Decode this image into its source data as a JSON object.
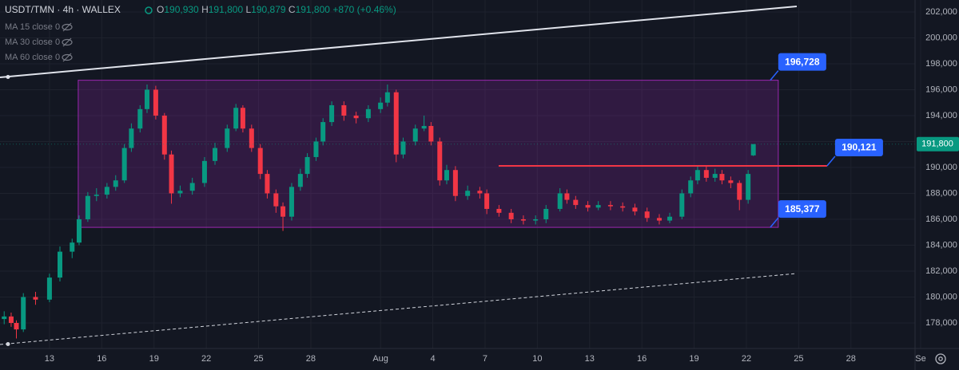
{
  "chart_data": {
    "type": "candlestick",
    "symbol": "USDT/TMN · 4h · WALLEX",
    "ohlc": [
      {
        "key": "O",
        "value": 190930,
        "label": "190,930"
      },
      {
        "key": "H",
        "value": 191800,
        "label": "191,800"
      },
      {
        "key": "L",
        "value": 190879,
        "label": "190,879"
      },
      {
        "key": "C",
        "value": 191800,
        "label": "191,800"
      }
    ],
    "change": {
      "value": 870,
      "label": "+870 (+0.46%)"
    },
    "indicators": [
      "MA 15 close 0",
      "MA 30 close 0",
      "MA 60 close 0"
    ],
    "up_color": "#089981",
    "down_color": "#f23645",
    "x": [
      -2.6,
      -2.2,
      -1.9,
      -1.5,
      -0.8,
      0.0,
      0.6,
      1.3,
      1.7,
      2.2,
      2.7,
      3.3,
      3.8,
      4.3,
      4.7,
      5.2,
      5.6,
      6.1,
      6.6,
      7.0,
      7.5,
      8.2,
      8.9,
      9.5,
      10.2,
      10.7,
      11.1,
      11.6,
      12.1,
      12.5,
      13.0,
      13.4,
      13.9,
      14.4,
      14.8,
      15.3,
      15.7,
      16.2,
      16.9,
      17.6,
      18.3,
      19.0,
      19.4,
      19.9,
      20.3,
      21.0,
      21.5,
      21.9,
      22.4,
      22.8,
      23.3,
      24.0,
      24.7,
      25.1,
      25.8,
      26.5,
      27.2,
      27.9,
      28.5,
      29.3,
      29.7,
      30.2,
      30.9,
      31.5,
      32.2,
      32.9,
      33.6,
      34.3,
      35.0,
      35.6,
      36.3,
      36.8,
      37.2,
      37.7,
      38.2,
      38.6,
      39.1,
      39.6,
      40.1,
      40.4
    ],
    "open": [
      178300,
      178500,
      178000,
      177500,
      180000,
      179800,
      181500,
      183500,
      184200,
      186000,
      187800,
      187900,
      188500,
      189000,
      191500,
      193000,
      194500,
      196000,
      194000,
      191000,
      188000,
      188200,
      188800,
      190500,
      191500,
      193000,
      194600,
      193000,
      191500,
      189500,
      188000,
      187000,
      186200,
      188500,
      189500,
      190800,
      192000,
      193500,
      194800,
      194000,
      193800,
      194500,
      195000,
      195800,
      191000,
      192000,
      193000,
      193200,
      192000,
      189000,
      189800,
      187800,
      188200,
      188000,
      186800,
      186500,
      186000,
      185900,
      186000,
      186800,
      188000,
      187500,
      187100,
      186900,
      187100,
      187000,
      186900,
      186600,
      186100,
      185900,
      186200,
      188000,
      189000,
      189800,
      189200,
      189500,
      189000,
      188800,
      187500,
      190930
    ],
    "high": [
      178900,
      178800,
      178200,
      180300,
      180400,
      181800,
      183900,
      184500,
      186300,
      188100,
      188400,
      188800,
      189400,
      191800,
      193400,
      194800,
      196400,
      196300,
      194200,
      191300,
      188600,
      189200,
      190800,
      191900,
      193300,
      194900,
      194800,
      193300,
      191800,
      189800,
      188300,
      187300,
      188800,
      189900,
      191100,
      192300,
      193800,
      195100,
      195100,
      194300,
      194800,
      195400,
      196400,
      196000,
      192300,
      193300,
      194000,
      193500,
      192300,
      190200,
      190100,
      188600,
      188500,
      188300,
      187100,
      186800,
      186300,
      186300,
      187100,
      188400,
      188300,
      187800,
      187400,
      187400,
      187400,
      187300,
      187200,
      186900,
      186400,
      186500,
      188300,
      189300,
      190100,
      190100,
      189900,
      189800,
      189300,
      189000,
      189800,
      191800
    ],
    "low": [
      177900,
      177700,
      176800,
      177300,
      179400,
      179600,
      181200,
      183000,
      184000,
      185800,
      187400,
      187600,
      188200,
      188800,
      191200,
      192700,
      194200,
      193700,
      190600,
      187200,
      187700,
      187900,
      188500,
      190200,
      191200,
      192800,
      192700,
      191200,
      189100,
      187600,
      186500,
      185100,
      185900,
      188200,
      189200,
      190500,
      191700,
      193200,
      193600,
      193400,
      193500,
      194200,
      194700,
      190400,
      190700,
      191700,
      192800,
      191700,
      188600,
      188700,
      187400,
      187500,
      187600,
      186400,
      186200,
      185700,
      185600,
      185600,
      185700,
      186600,
      187200,
      186800,
      186600,
      186700,
      186700,
      186600,
      186300,
      185800,
      185600,
      185700,
      186000,
      187700,
      188700,
      188900,
      188900,
      188700,
      188400,
      186700,
      187200,
      190879
    ],
    "close": [
      178500,
      178000,
      177500,
      180000,
      179800,
      181500,
      183500,
      184200,
      186000,
      187800,
      187900,
      188500,
      189000,
      191500,
      193000,
      194500,
      196000,
      194000,
      191000,
      188000,
      188200,
      188800,
      190500,
      191500,
      193000,
      194600,
      193000,
      191500,
      189500,
      188000,
      187000,
      186200,
      188500,
      189500,
      190800,
      192000,
      193500,
      194800,
      194000,
      193800,
      194500,
      195000,
      195800,
      191000,
      192000,
      193000,
      193200,
      192000,
      189000,
      189800,
      187800,
      188200,
      188000,
      186800,
      186500,
      186000,
      185900,
      186000,
      186800,
      188000,
      187500,
      187100,
      186900,
      187100,
      187000,
      186900,
      186600,
      186100,
      185900,
      186200,
      188000,
      189000,
      189800,
      189200,
      189500,
      189000,
      188800,
      187500,
      189500,
      191800
    ],
    "last_price": {
      "value": 191800,
      "label": "191,800"
    },
    "range_box": {
      "x": [
        1.65,
        41.83
      ],
      "top": {
        "value": 196728,
        "label": "196,728"
      },
      "bottom": {
        "value": 185377,
        "label": "185,377"
      },
      "color": "#9c27b0"
    },
    "hline": {
      "x": [
        25.78,
        44.63
      ],
      "y": {
        "value": 190121,
        "label": "190,121"
      },
      "color": "#f23645"
    },
    "trendlines": [
      {
        "x": [
          -2.84,
          42.89
        ],
        "y": [
          196954,
          202431
        ],
        "style": "solid",
        "color": "#e0e3eb"
      },
      {
        "x": [
          -2.84,
          42.89
        ],
        "y": [
          176338,
          181815
        ],
        "style": "dashed",
        "color": "#d1d4dc"
      }
    ],
    "xlim": [
      -2.84,
      49.68
    ],
    "ylim": [
      176030,
      202920
    ],
    "xticks": [
      {
        "value": 0,
        "label": "13"
      },
      {
        "value": 3,
        "label": "16"
      },
      {
        "value": 6,
        "label": "19"
      },
      {
        "value": 9,
        "label": "22"
      },
      {
        "value": 12,
        "label": "25"
      },
      {
        "value": 15,
        "label": "28"
      },
      {
        "value": 19,
        "label": "Aug"
      },
      {
        "value": 22,
        "label": "4"
      },
      {
        "value": 25,
        "label": "7"
      },
      {
        "value": 28,
        "label": "10"
      },
      {
        "value": 31,
        "label": "13"
      },
      {
        "value": 34,
        "label": "16"
      },
      {
        "value": 37,
        "label": "19"
      },
      {
        "value": 40,
        "label": "22"
      },
      {
        "value": 43,
        "label": "25"
      },
      {
        "value": 46,
        "label": "28"
      },
      {
        "value": 50,
        "label": "Se"
      }
    ],
    "yticks": [
      {
        "value": 178000,
        "label": "178,000"
      },
      {
        "value": 180000,
        "label": "180,000"
      },
      {
        "value": 182000,
        "label": "182,000"
      },
      {
        "value": 184000,
        "label": "184,000"
      },
      {
        "value": 186000,
        "label": "186,000"
      },
      {
        "value": 188000,
        "label": "188,000"
      },
      {
        "value": 190000,
        "label": "190,000"
      },
      {
        "value": 192000,
        "label": "192,000"
      },
      {
        "value": 194000,
        "label": "194,000"
      },
      {
        "value": 196000,
        "label": "196,000"
      },
      {
        "value": 198000,
        "label": "198,000"
      },
      {
        "value": 200000,
        "label": "200,000"
      },
      {
        "value": 202000,
        "label": "202,000"
      }
    ],
    "grid": true
  }
}
